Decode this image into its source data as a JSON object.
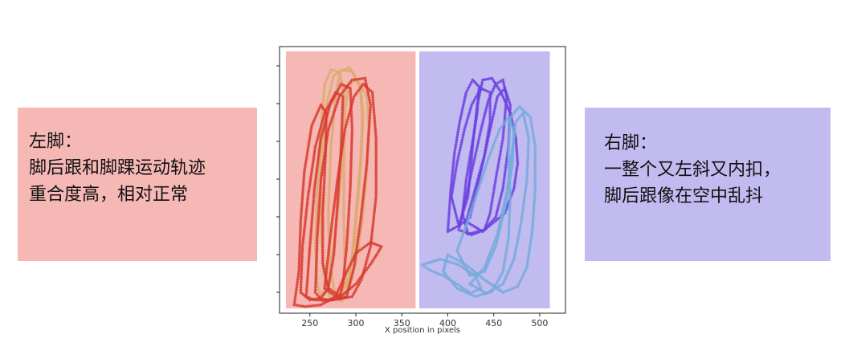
{
  "notes": {
    "left": {
      "title": "左脚：",
      "line1": "脚后跟和脚踝运动轨迹",
      "line2": "重合度高，相对正常",
      "bg": "#f6b8b5"
    },
    "right": {
      "title": "右脚：",
      "line1": "一整个又左斜又内扣，",
      "line2": "脚后跟像在空中乱抖",
      "bg": "#c2bbf0"
    }
  },
  "chart_data": {
    "type": "scatter",
    "xlabel": "X position in pixels",
    "xlim": [
      217,
      528
    ],
    "ylim": [
      0,
      320
    ],
    "x_ticks": [
      250,
      300,
      350,
      400,
      450,
      500
    ],
    "y_tick_labels": false,
    "panels": [
      {
        "side": "left",
        "x_range": [
          224,
          365
        ],
        "color": "#f6b8b5"
      },
      {
        "side": "right",
        "x_range": [
          369,
          511
        ],
        "color": "#c2bbf0"
      }
    ],
    "series": [
      {
        "color": "#dcaa70",
        "loops": [
          [
            [
              272,
              302
            ],
            [
              285,
              305
            ],
            [
              292,
              290
            ],
            [
              296,
              250
            ],
            [
              300,
              200
            ],
            [
              305,
              140
            ],
            [
              307,
              90
            ],
            [
              305,
              50
            ],
            [
              296,
              30
            ],
            [
              285,
              28
            ],
            [
              276,
              35
            ],
            [
              268,
              70
            ],
            [
              262,
              140
            ],
            [
              262,
              220
            ],
            [
              265,
              270
            ],
            [
              272,
              302
            ]
          ],
          [
            [
              282,
              300
            ],
            [
              292,
              280
            ],
            [
              298,
              240
            ],
            [
              302,
              190
            ],
            [
              306,
              130
            ],
            [
              308,
              80
            ],
            [
              304,
              45
            ],
            [
              293,
              25
            ],
            [
              283,
              30
            ],
            [
              278,
              60
            ],
            [
              273,
              120
            ],
            [
              270,
              200
            ],
            [
              272,
              260
            ],
            [
              276,
              290
            ],
            [
              282,
              300
            ]
          ],
          [
            [
              262,
              300
            ],
            [
              270,
              285
            ],
            [
              276,
              240
            ],
            [
              282,
              180
            ],
            [
              286,
              110
            ],
            [
              287,
              55
            ],
            [
              282,
              30
            ],
            [
              273,
              28
            ],
            [
              266,
              45
            ],
            [
              262,
              100
            ],
            [
              258,
              170
            ],
            [
              256,
              240
            ],
            [
              258,
              285
            ],
            [
              262,
              300
            ]
          ],
          [
            [
              290,
              290
            ],
            [
              300,
              260
            ],
            [
              307,
              210
            ],
            [
              312,
              150
            ],
            [
              314,
              95
            ],
            [
              312,
              60
            ],
            [
              302,
              40
            ],
            [
              292,
              45
            ],
            [
              288,
              80
            ],
            [
              287,
              140
            ],
            [
              287,
              210
            ],
            [
              288,
              265
            ],
            [
              290,
              290
            ]
          ]
        ]
      },
      {
        "color": "#d83a2e",
        "loops": [
          [
            [
              233,
              310
            ],
            [
              238,
              270
            ],
            [
              240,
              210
            ],
            [
              244,
              150
            ],
            [
              252,
              95
            ],
            [
              262,
              70
            ],
            [
              268,
              80
            ],
            [
              267,
              130
            ],
            [
              264,
              200
            ],
            [
              264,
              260
            ],
            [
              270,
              290
            ],
            [
              283,
              300
            ],
            [
              300,
              285
            ],
            [
              318,
              258
            ],
            [
              328,
              240
            ],
            [
              316,
              235
            ],
            [
              300,
              248
            ],
            [
              288,
              275
            ],
            [
              278,
              300
            ],
            [
              262,
              310
            ],
            [
              245,
              312
            ],
            [
              233,
              310
            ]
          ],
          [
            [
              246,
              300
            ],
            [
              250,
              240
            ],
            [
              255,
              170
            ],
            [
              262,
              110
            ],
            [
              272,
              70
            ],
            [
              284,
              45
            ],
            [
              294,
              50
            ],
            [
              296,
              100
            ],
            [
              294,
              170
            ],
            [
              290,
              240
            ],
            [
              286,
              285
            ],
            [
              282,
              302
            ],
            [
              270,
              305
            ],
            [
              255,
              304
            ],
            [
              246,
              300
            ]
          ],
          [
            [
              266,
              290
            ],
            [
              272,
              230
            ],
            [
              280,
              160
            ],
            [
              288,
              100
            ],
            [
              298,
              60
            ],
            [
              308,
              45
            ],
            [
              318,
              55
            ],
            [
              322,
              110
            ],
            [
              322,
              180
            ],
            [
              316,
              240
            ],
            [
              306,
              280
            ],
            [
              296,
              300
            ],
            [
              282,
              303
            ],
            [
              266,
              290
            ]
          ],
          [
            [
              256,
              295
            ],
            [
              258,
              230
            ],
            [
              262,
              160
            ],
            [
              270,
              100
            ],
            [
              282,
              60
            ],
            [
              296,
              40
            ],
            [
              310,
              38
            ],
            [
              316,
              70
            ],
            [
              312,
              140
            ],
            [
              305,
              210
            ],
            [
              298,
              265
            ],
            [
              290,
              300
            ],
            [
              276,
              304
            ],
            [
              262,
              303
            ],
            [
              256,
              295
            ]
          ],
          [
            [
              240,
              295
            ],
            [
              242,
              240
            ],
            [
              248,
              180
            ],
            [
              256,
              120
            ],
            [
              266,
              80
            ],
            [
              278,
              55
            ],
            [
              286,
              60
            ],
            [
              284,
              120
            ],
            [
              280,
              190
            ],
            [
              276,
              250
            ],
            [
              270,
              290
            ],
            [
              262,
              302
            ],
            [
              250,
              304
            ],
            [
              240,
              295
            ]
          ]
        ]
      },
      {
        "color": "#6b3fe0",
        "loops": [
          [
            [
              400,
              222
            ],
            [
              403,
              175
            ],
            [
              407,
              130
            ],
            [
              413,
              90
            ],
            [
              420,
              55
            ],
            [
              427,
              40
            ],
            [
              434,
              48
            ],
            [
              432,
              80
            ],
            [
              426,
              120
            ],
            [
              420,
              160
            ],
            [
              416,
              200
            ],
            [
              422,
              225
            ],
            [
              440,
              220
            ],
            [
              462,
              200
            ],
            [
              472,
              170
            ],
            [
              476,
              140
            ],
            [
              474,
              110
            ],
            [
              468,
              80
            ],
            [
              458,
              55
            ],
            [
              448,
              38
            ],
            [
              438,
              40
            ],
            [
              432,
              70
            ],
            [
              427,
              120
            ],
            [
              422,
              180
            ],
            [
              412,
              215
            ],
            [
              400,
              222
            ]
          ],
          [
            [
              412,
              220
            ],
            [
              420,
              180
            ],
            [
              428,
              140
            ],
            [
              436,
              100
            ],
            [
              444,
              65
            ],
            [
              452,
              45
            ],
            [
              460,
              40
            ],
            [
              464,
              60
            ],
            [
              460,
              110
            ],
            [
              452,
              160
            ],
            [
              446,
              200
            ],
            [
              440,
              220
            ],
            [
              426,
              226
            ],
            [
              412,
              220
            ]
          ],
          [
            [
              420,
              210
            ],
            [
              430,
              170
            ],
            [
              440,
              130
            ],
            [
              448,
              90
            ],
            [
              454,
              60
            ],
            [
              462,
              50
            ],
            [
              468,
              70
            ],
            [
              466,
              120
            ],
            [
              460,
              170
            ],
            [
              452,
              205
            ],
            [
              438,
              222
            ],
            [
              420,
              210
            ]
          ],
          [
            [
              404,
              180
            ],
            [
              410,
              140
            ],
            [
              418,
              100
            ],
            [
              426,
              70
            ],
            [
              436,
              50
            ],
            [
              446,
              55
            ],
            [
              446,
              90
            ],
            [
              440,
              130
            ],
            [
              432,
              170
            ],
            [
              424,
              205
            ],
            [
              412,
              215
            ],
            [
              404,
              180
            ]
          ]
        ]
      },
      {
        "color": "#74aadc",
        "loops": [
          [
            [
              372,
              262
            ],
            [
              392,
              255
            ],
            [
              412,
              262
            ],
            [
              430,
              275
            ],
            [
              436,
              290
            ],
            [
              425,
              296
            ],
            [
              410,
              285
            ],
            [
              395,
              275
            ],
            [
              380,
              268
            ],
            [
              372,
              262
            ]
          ],
          [
            [
              400,
              250
            ],
            [
              420,
              262
            ],
            [
              440,
              280
            ],
            [
              460,
              295
            ],
            [
              476,
              288
            ],
            [
              486,
              265
            ],
            [
              492,
              220
            ],
            [
              495,
              170
            ],
            [
              495,
              120
            ],
            [
              490,
              85
            ],
            [
              478,
              72
            ],
            [
              468,
              85
            ],
            [
              466,
              130
            ],
            [
              468,
              180
            ],
            [
              466,
              230
            ],
            [
              460,
              270
            ],
            [
              448,
              294
            ],
            [
              430,
              300
            ],
            [
              410,
              290
            ],
            [
              395,
              270
            ],
            [
              400,
              250
            ]
          ],
          [
            [
              424,
              285
            ],
            [
              440,
              265
            ],
            [
              454,
              225
            ],
            [
              464,
              175
            ],
            [
              470,
              125
            ],
            [
              474,
              90
            ],
            [
              482,
              80
            ],
            [
              488,
              110
            ],
            [
              486,
              160
            ],
            [
              480,
              210
            ],
            [
              472,
              255
            ],
            [
              460,
              285
            ],
            [
              442,
              296
            ],
            [
              424,
              285
            ]
          ],
          [
            [
              410,
              245
            ],
            [
              420,
              215
            ],
            [
              432,
              175
            ],
            [
              444,
              135
            ],
            [
              456,
              100
            ],
            [
              466,
              85
            ],
            [
              472,
              100
            ],
            [
              470,
              145
            ],
            [
              462,
              195
            ],
            [
              452,
              240
            ],
            [
              440,
              270
            ],
            [
              424,
              275
            ],
            [
              410,
              245
            ]
          ]
        ]
      }
    ]
  }
}
